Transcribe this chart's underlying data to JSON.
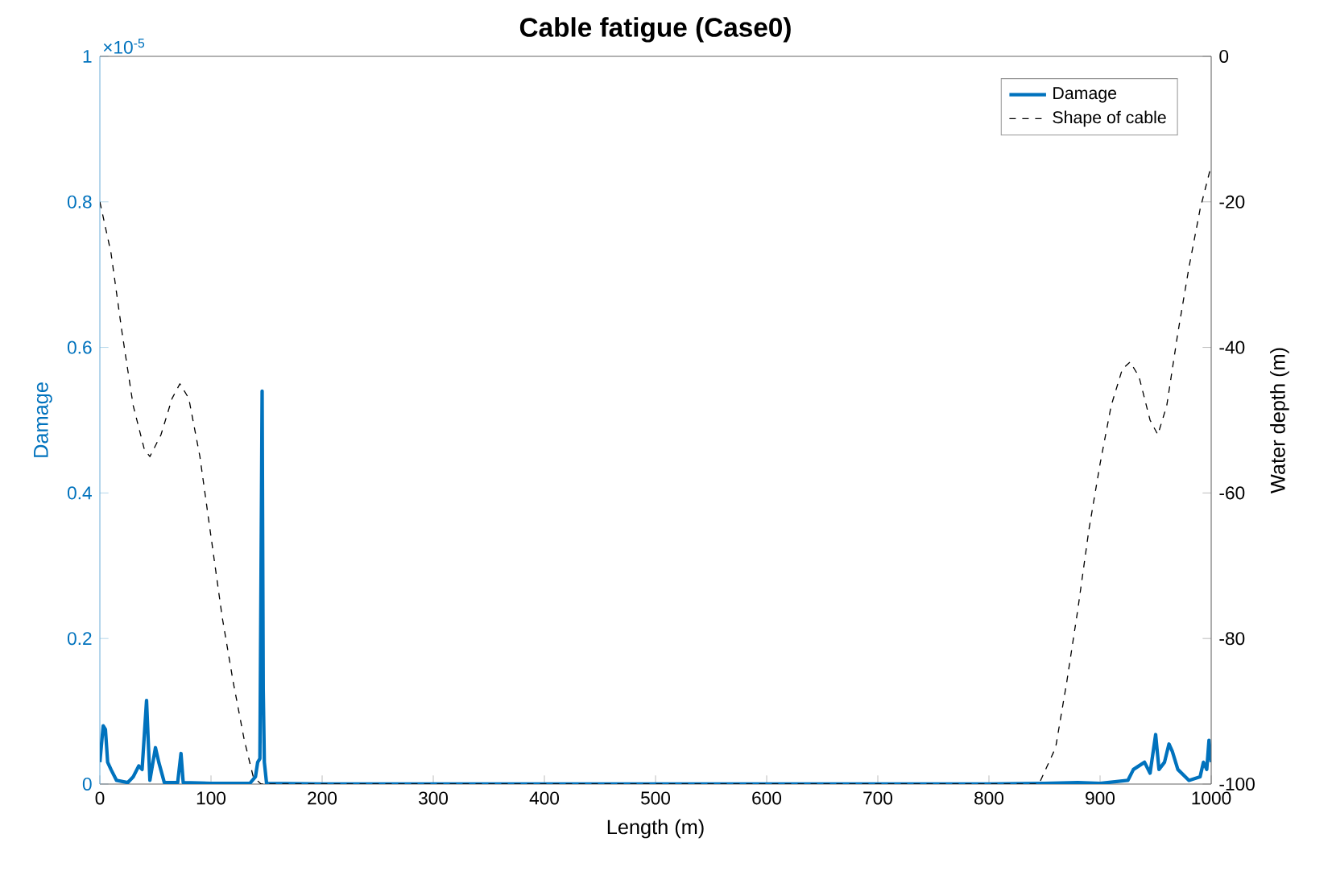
{
  "chart_data": {
    "type": "line",
    "title": "Cable fatigue (Case0)",
    "xlabel": "Length (m)",
    "ylabel": "Damage",
    "y2label": "Water depth (m)",
    "annotations": [
      "×10$^{-5}$"
    ],
    "xlim": [
      0,
      1000
    ],
    "xticks": [
      0,
      100,
      200,
      300,
      400,
      500,
      600,
      700,
      800,
      900,
      1000
    ],
    "ylim": [
      0,
      1
    ],
    "yticks": [
      0,
      0.2,
      0.4,
      0.6,
      0.8,
      1
    ],
    "y2lim": [
      -100,
      0
    ],
    "y2ticks": [
      -100,
      -80,
      -60,
      -40,
      -20,
      0
    ],
    "grid": false,
    "legend": "top right",
    "series": [
      {
        "name": "Damage",
        "color": "#0072bd",
        "line_style": "solid",
        "x": [
          0,
          3,
          5,
          7,
          10,
          15,
          25,
          30,
          35,
          38,
          42,
          45,
          50,
          53,
          58,
          70,
          73,
          75,
          100,
          135,
          140,
          142,
          144,
          146,
          147,
          148,
          150,
          200,
          800,
          850,
          880,
          900,
          925,
          930,
          940,
          945,
          950,
          953,
          958,
          962,
          965,
          970,
          980,
          990,
          993,
          996,
          998,
          1000
        ],
        "values": [
          0.03,
          0.08,
          0.075,
          0.03,
          0.02,
          0.005,
          0.002,
          0.01,
          0.025,
          0.02,
          0.115,
          0.005,
          0.05,
          0.03,
          0.002,
          0.002,
          0.042,
          0.002,
          0.001,
          0.001,
          0.01,
          0.03,
          0.035,
          0.54,
          0.13,
          0.03,
          0.001,
          0,
          0,
          0.001,
          0.002,
          0.001,
          0.005,
          0.02,
          0.03,
          0.015,
          0.068,
          0.02,
          0.03,
          0.055,
          0.045,
          0.02,
          0.005,
          0.01,
          0.03,
          0.02,
          0.06,
          0.03
        ]
      },
      {
        "name": "Shape of cable",
        "axis": "y2",
        "color": "#000000",
        "line_style": "dashed",
        "x": [
          0,
          10,
          20,
          30,
          40,
          45,
          55,
          65,
          72,
          80,
          90,
          100,
          110,
          120,
          130,
          138,
          145,
          200,
          845,
          860,
          870,
          880,
          890,
          900,
          910,
          920,
          927,
          935,
          945,
          952,
          960,
          970,
          980,
          990,
          1000
        ],
        "values": [
          -20,
          -27,
          -38,
          -48,
          -54,
          -55,
          -52,
          -47,
          -45,
          -47,
          -55,
          -66,
          -77,
          -86,
          -94,
          -99,
          -100,
          -100,
          -100,
          -95,
          -86,
          -76,
          -65,
          -56,
          -48,
          -43,
          -42,
          -44,
          -50,
          -52,
          -48,
          -38,
          -29,
          -21,
          -15
        ]
      }
    ]
  }
}
